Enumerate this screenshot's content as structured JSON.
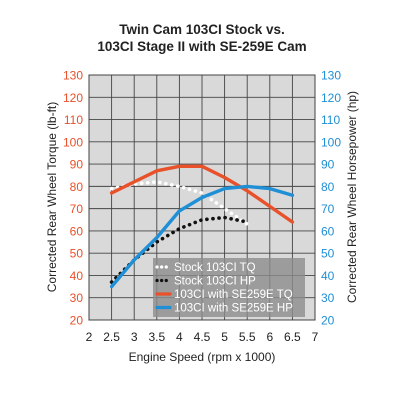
{
  "chart_data": {
    "type": "line",
    "title_lines": [
      "Twin Cam 103CI Stock vs.",
      "103CI Stage II with SE-259E Cam"
    ],
    "xlabel": "Engine Speed (rpm x 1000)",
    "ylabel_left": "Corrected Rear Wheel Torque (lb-ft)",
    "ylabel_right": "Corrected Rear Wheel Horsepower (hp)",
    "xlim": [
      2,
      7
    ],
    "x_ticks": [
      "2",
      "2.5",
      "3",
      "3.5",
      "4",
      "4.5",
      "5",
      "5.5",
      "6",
      "6.5",
      "7"
    ],
    "ylim_left": [
      20,
      130
    ],
    "ylim_right": [
      20,
      130
    ],
    "y_ticks_left": [
      "20",
      "30",
      "40",
      "50",
      "60",
      "70",
      "80",
      "90",
      "100",
      "110",
      "120",
      "130"
    ],
    "y_ticks_right": [
      "20",
      "30",
      "40",
      "50",
      "60",
      "70",
      "80",
      "90",
      "100",
      "110",
      "120",
      "130"
    ],
    "grid": true,
    "legend_position": "bottom-right",
    "colors": {
      "stock_tq": "#ffffff",
      "stock_hp": "#111111",
      "stage_tq": "#e8512a",
      "stage_hp": "#1f8fd6",
      "left_axis": "#e8512a",
      "right_axis": "#1f8fd6",
      "plot_bg": "#d9d9d9"
    },
    "series": [
      {
        "name": "Stock 103CI TQ",
        "style": "dotted",
        "color": "#ffffff",
        "x": [
          2.5,
          3,
          3.5,
          4,
          4.5,
          5,
          5.5
        ],
        "y": [
          79,
          81,
          82,
          80,
          77,
          70,
          63
        ]
      },
      {
        "name": "Stock 103CI HP",
        "style": "dotted",
        "color": "#111111",
        "x": [
          2.5,
          3,
          3.5,
          4,
          4.5,
          5,
          5.5
        ],
        "y": [
          37,
          47,
          55,
          61,
          65,
          66,
          64
        ]
      },
      {
        "name": "103CI with SE259E TQ",
        "style": "solid",
        "color": "#e8512a",
        "x": [
          2.5,
          3,
          3.5,
          4,
          4.5,
          5,
          5.5,
          6,
          6.5
        ],
        "y": [
          77,
          82,
          87,
          89,
          89,
          84,
          78,
          71,
          64
        ]
      },
      {
        "name": "103CI with SE259E HP",
        "style": "solid",
        "color": "#1f8fd6",
        "x": [
          2.5,
          3,
          3.5,
          4,
          4.5,
          5,
          5.5,
          6,
          6.5
        ],
        "y": [
          35,
          47,
          57,
          69,
          75,
          79,
          80,
          79,
          76
        ]
      }
    ]
  }
}
